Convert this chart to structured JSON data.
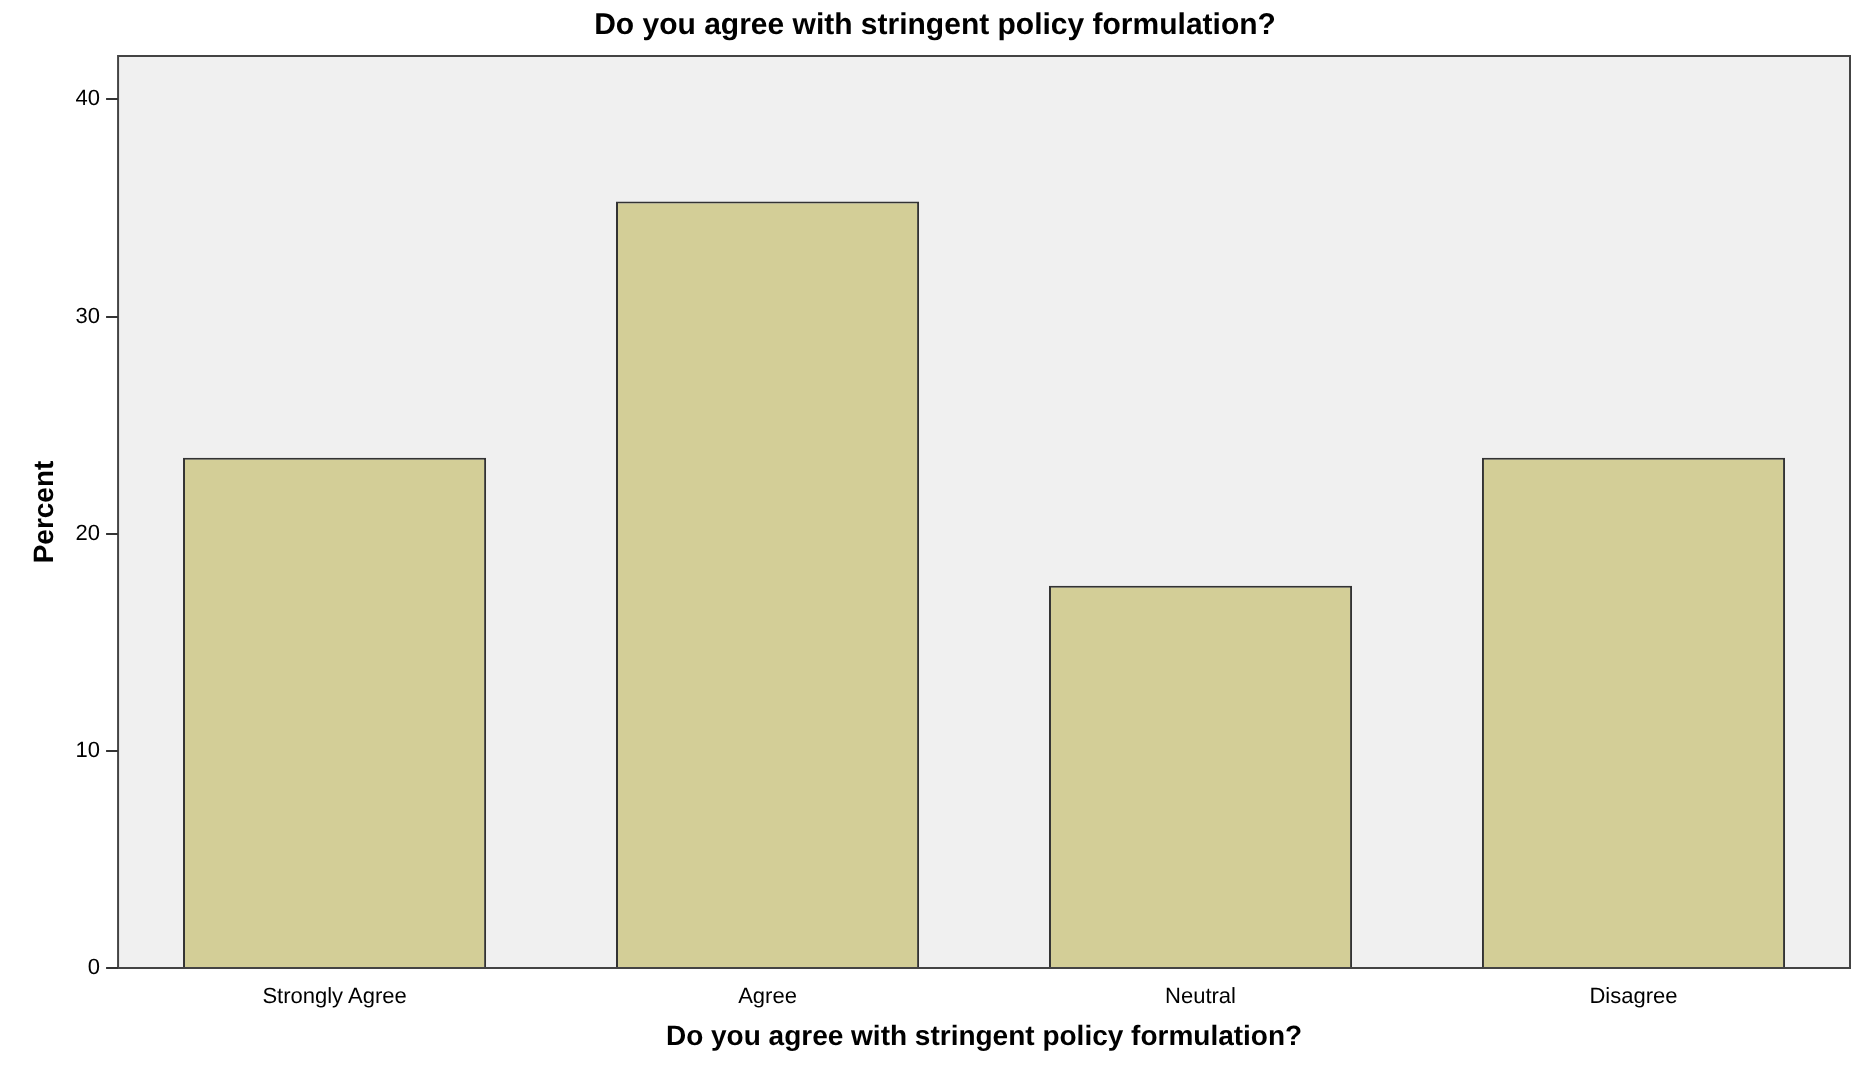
{
  "chart_data": {
    "type": "bar",
    "title": "Do you agree with stringent policy formulation?",
    "xlabel": "Do you agree with stringent policy formulation?",
    "ylabel": "Percent",
    "categories": [
      "Strongly Agree",
      "Agree",
      "Neutral",
      "Disagree"
    ],
    "values": [
      23.5,
      35.3,
      17.6,
      23.5
    ],
    "color": "#d3ce97",
    "ylim": [
      0,
      42
    ],
    "yticks": [
      0,
      10,
      20,
      30,
      40
    ],
    "grid": false,
    "legend": false
  }
}
